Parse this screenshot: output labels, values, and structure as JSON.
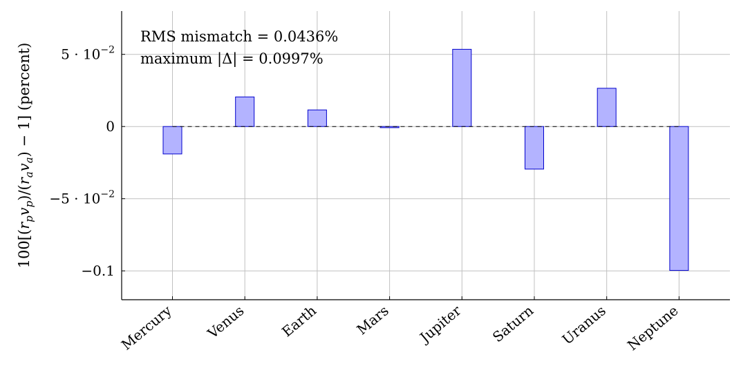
{
  "chart_data": {
    "type": "bar",
    "categories": [
      "Mercury",
      "Venus",
      "Earth",
      "Mars",
      "Jupiter",
      "Saturn",
      "Uranus",
      "Neptune"
    ],
    "values": [
      -0.019,
      0.0205,
      0.0115,
      -0.0008,
      0.0535,
      -0.0295,
      0.0265,
      -0.0997
    ],
    "ylabel": "100[(r_p v_p)/(r_a v_a) − 1] (percent)",
    "xlabel": "",
    "ylim": [
      -0.12,
      0.08
    ],
    "yticks": [
      {
        "value": 0.05,
        "label": "5 · 10"
      },
      {
        "value": 0,
        "label": "0"
      },
      {
        "value": -0.05,
        "label": "−5 · 10"
      },
      {
        "value": -0.1,
        "label": "−0.1"
      }
    ],
    "ytick_exponent": "−2",
    "grid": true,
    "zero_line": "dashed",
    "colors": {
      "bar_fill": "#b3b3ff",
      "bar_stroke": "#0000cc"
    },
    "annotations": [
      "RMS mismatch = 0.0436%",
      "maximum |Δ| = 0.0997%"
    ]
  }
}
